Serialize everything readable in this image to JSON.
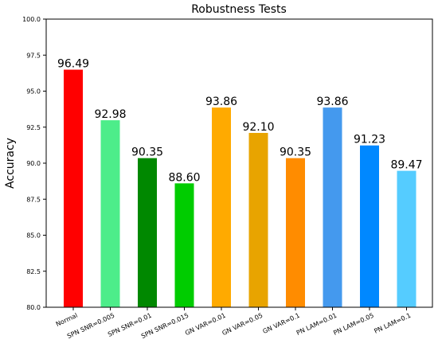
{
  "chart_data": {
    "type": "bar",
    "title": "Robustness Tests",
    "xlabel": "",
    "ylabel": "Accuracy",
    "ylim": [
      80.0,
      100.0
    ],
    "yticks": [
      "80.0",
      "82.5",
      "85.0",
      "87.5",
      "90.0",
      "92.5",
      "95.0",
      "97.5",
      "100.0"
    ],
    "grid": false,
    "categories": [
      "Normal",
      "SPN SNR=0.005",
      "SPN SNR=0.01",
      "SPN SNR=0.015",
      "GN VAR=0.01",
      "GN VAR=0.05",
      "GN VAR=0.1",
      "PN LAM=0.01",
      "PN LAM=0.05",
      "PN LAM=0.1"
    ],
    "values": [
      96.49,
      92.98,
      90.35,
      88.6,
      93.86,
      92.1,
      90.35,
      93.86,
      91.23,
      89.47
    ],
    "value_labels": [
      "96.49",
      "92.98",
      "90.35",
      "88.60",
      "93.86",
      "92.10",
      "90.35",
      "93.86",
      "91.23",
      "89.47"
    ],
    "colors": [
      "#ff0000",
      "#4ded8a",
      "#008800",
      "#00cc00",
      "#ffaa00",
      "#e8a400",
      "#ff8c00",
      "#4499ee",
      "#0088ff",
      "#55ccff"
    ]
  }
}
